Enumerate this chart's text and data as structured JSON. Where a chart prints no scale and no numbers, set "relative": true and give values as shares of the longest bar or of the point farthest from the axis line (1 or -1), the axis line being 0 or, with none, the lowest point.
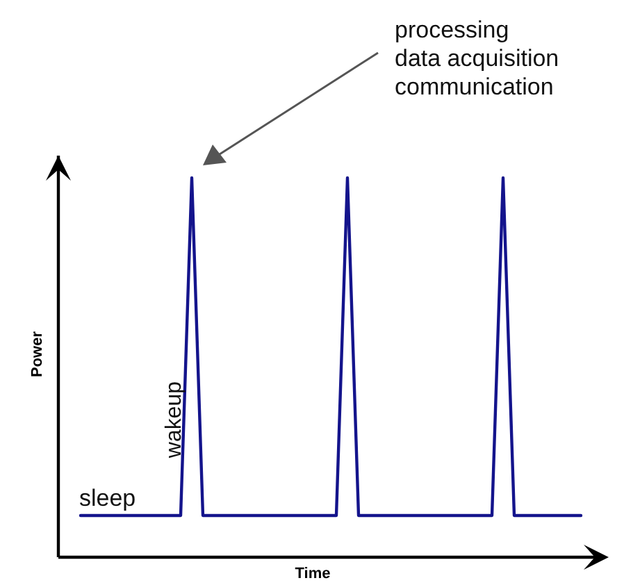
{
  "chart_data": {
    "type": "line",
    "relative": true,
    "xlabel": "Time",
    "ylabel": "Power",
    "categories": [
      null,
      null,
      null,
      null,
      null,
      null,
      null,
      null,
      null,
      null,
      null,
      null,
      null,
      null,
      null,
      null,
      null,
      null,
      null,
      null,
      null,
      null,
      null,
      null,
      null,
      null,
      null,
      null,
      null,
      null,
      null,
      null,
      null,
      null,
      null,
      null,
      null,
      null,
      null,
      null,
      null,
      null,
      null,
      null,
      null,
      null
    ],
    "series": [
      {
        "color": "#14148c",
        "line_style": "solid",
        "values": [
          0.11,
          0.11,
          0.11,
          0.11,
          0.11,
          0.11,
          0.11,
          0.11,
          0.11,
          0.11,
          1,
          0.11,
          0.11,
          0.11,
          0.11,
          0.11,
          0.11,
          0.11,
          0.11,
          0.11,
          0.11,
          0.11,
          0.11,
          0.11,
          1,
          0.11,
          0.11,
          0.11,
          0.11,
          0.11,
          0.11,
          0.11,
          0.11,
          0.11,
          0.11,
          0.11,
          0.11,
          0.11,
          1,
          0.11,
          0.11,
          0.11,
          0.11,
          0.11,
          0.11,
          0.11
        ]
      }
    ],
    "annotations": [
      "processing\ndata acquisition\ncommunication",
      "sleep",
      "wakeup"
    ]
  }
}
